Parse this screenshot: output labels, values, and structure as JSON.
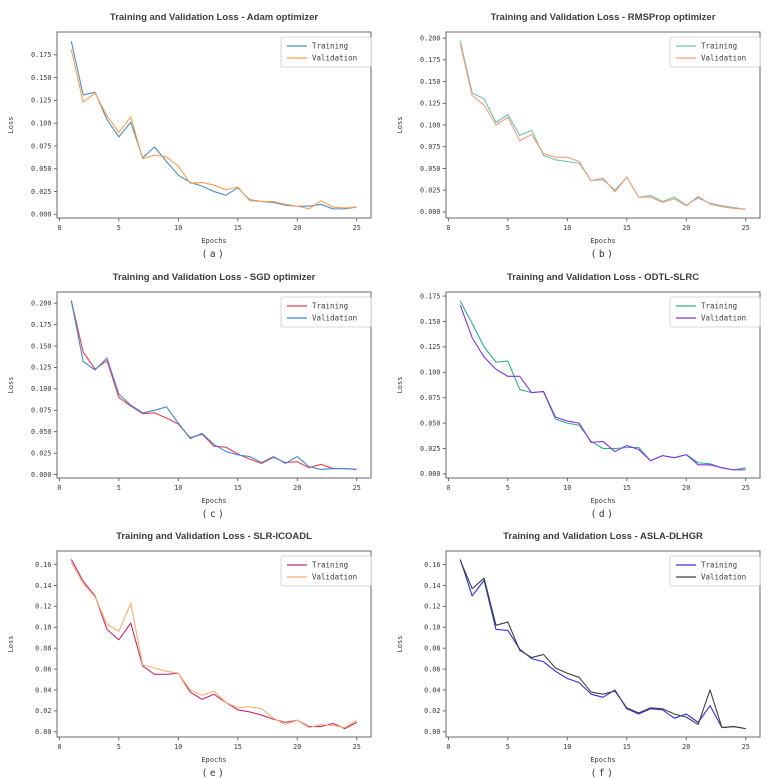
{
  "page": {
    "background": "#ffffff",
    "text_color": "#3d3d3d",
    "spine_color": "#595959"
  },
  "chart_data": {
    "type": "line",
    "x": [
      1,
      2,
      3,
      4,
      5,
      6,
      7,
      8,
      9,
      10,
      11,
      12,
      13,
      14,
      15,
      16,
      17,
      18,
      19,
      20,
      21,
      22,
      23,
      24,
      25
    ],
    "xlabel": "Epochs",
    "ylabel": "Loss",
    "xlim": [
      -0.2,
      26.2
    ],
    "xticks": [
      0,
      5,
      10,
      15,
      20,
      25
    ],
    "grid": false,
    "legend_position": "top-right",
    "legend_labels": [
      "Training",
      "Validation"
    ],
    "charts": [
      {
        "id": "a",
        "caption": "(a)",
        "title": "Training and Validation Loss - Adam optimizer",
        "ylim": [
          -0.004,
          0.2
        ],
        "yticks": [
          0.0,
          0.025,
          0.05,
          0.075,
          0.1,
          0.125,
          0.15,
          0.175
        ],
        "ytick_decimals": 3,
        "series": [
          {
            "name": "Training",
            "color": "#4e8fc9",
            "values": [
              0.19,
              0.131,
              0.134,
              0.104,
              0.085,
              0.101,
              0.062,
              0.074,
              0.058,
              0.043,
              0.035,
              0.031,
              0.025,
              0.021,
              0.029,
              0.016,
              0.014,
              0.013,
              0.01,
              0.009,
              0.009,
              0.011,
              0.006,
              0.006,
              0.008
            ]
          },
          {
            "name": "Validation",
            "color": "#ff9f4e",
            "values": [
              0.181,
              0.123,
              0.133,
              0.108,
              0.09,
              0.107,
              0.061,
              0.065,
              0.063,
              0.053,
              0.034,
              0.035,
              0.032,
              0.027,
              0.03,
              0.015,
              0.014,
              0.014,
              0.011,
              0.009,
              0.006,
              0.015,
              0.008,
              0.007,
              0.008
            ]
          }
        ]
      },
      {
        "id": "b",
        "caption": "(b)",
        "title": "Training and Validation Loss - RMSProp optimizer",
        "ylim": [
          -0.007,
          0.207
        ],
        "yticks": [
          0.0,
          0.025,
          0.05,
          0.075,
          0.1,
          0.125,
          0.15,
          0.175,
          0.2
        ],
        "ytick_decimals": 3,
        "series": [
          {
            "name": "Training",
            "color": "#6ec6ab",
            "values": [
              0.197,
              0.137,
              0.13,
              0.103,
              0.112,
              0.088,
              0.094,
              0.065,
              0.06,
              0.058,
              0.056,
              0.036,
              0.037,
              0.025,
              0.04,
              0.017,
              0.019,
              0.012,
              0.017,
              0.008,
              0.016,
              0.01,
              0.007,
              0.005,
              0.003
            ]
          },
          {
            "name": "Validation",
            "color": "#fb9c80",
            "values": [
              0.193,
              0.134,
              0.123,
              0.1,
              0.109,
              0.082,
              0.089,
              0.067,
              0.063,
              0.063,
              0.058,
              0.036,
              0.039,
              0.023,
              0.04,
              0.017,
              0.017,
              0.011,
              0.015,
              0.007,
              0.018,
              0.009,
              0.006,
              0.004,
              0.003
            ]
          }
        ]
      },
      {
        "id": "c",
        "caption": "(c)",
        "title": "Training and Validation Loss - SGD optimizer",
        "ylim": [
          -0.004,
          0.213
        ],
        "yticks": [
          0.0,
          0.025,
          0.05,
          0.075,
          0.1,
          0.125,
          0.15,
          0.175,
          0.2
        ],
        "ytick_decimals": 3,
        "series": [
          {
            "name": "Training",
            "color": "#e8414e",
            "values": [
              0.203,
              0.143,
              0.123,
              0.133,
              0.09,
              0.08,
              0.071,
              0.072,
              0.066,
              0.059,
              0.043,
              0.047,
              0.033,
              0.032,
              0.024,
              0.018,
              0.013,
              0.02,
              0.014,
              0.015,
              0.008,
              0.012,
              0.007,
              0.007,
              0.006
            ]
          },
          {
            "name": "Validation",
            "color": "#4484d8",
            "values": [
              0.203,
              0.132,
              0.122,
              0.136,
              0.094,
              0.081,
              0.072,
              0.075,
              0.079,
              0.06,
              0.042,
              0.048,
              0.035,
              0.027,
              0.023,
              0.021,
              0.014,
              0.021,
              0.013,
              0.021,
              0.009,
              0.006,
              0.007,
              0.007,
              0.006
            ]
          }
        ]
      },
      {
        "id": "d",
        "caption": "(d)",
        "title": "Training and Validation Loss - ODTL-SLRC",
        "ylim": [
          -0.004,
          0.179
        ],
        "yticks": [
          0.0,
          0.025,
          0.05,
          0.075,
          0.1,
          0.125,
          0.15,
          0.175
        ],
        "ytick_decimals": 3,
        "series": [
          {
            "name": "Training",
            "color": "#30ae85",
            "values": [
              0.17,
              0.148,
              0.125,
              0.11,
              0.111,
              0.083,
              0.08,
              0.081,
              0.054,
              0.05,
              0.048,
              0.032,
              0.025,
              0.025,
              0.026,
              0.026,
              0.013,
              0.018,
              0.016,
              0.019,
              0.011,
              0.01,
              0.006,
              0.004,
              0.006
            ]
          },
          {
            "name": "Validation",
            "color": "#8534e4",
            "values": [
              0.166,
              0.134,
              0.115,
              0.103,
              0.096,
              0.096,
              0.08,
              0.081,
              0.056,
              0.052,
              0.05,
              0.031,
              0.032,
              0.022,
              0.028,
              0.024,
              0.013,
              0.018,
              0.016,
              0.019,
              0.009,
              0.009,
              0.006,
              0.004,
              0.004
            ]
          }
        ]
      },
      {
        "id": "e",
        "caption": "(e)",
        "title": "Training and Validation Loss - SLR-ICOADL",
        "ylim": [
          -0.005,
          0.173
        ],
        "yticks": [
          0.0,
          0.02,
          0.04,
          0.06,
          0.08,
          0.1,
          0.12,
          0.14,
          0.16
        ],
        "ytick_decimals": 2,
        "series": [
          {
            "name": "Training",
            "color": "#c42a72",
            "values": [
              0.165,
              0.144,
              0.13,
              0.098,
              0.088,
              0.104,
              0.063,
              0.055,
              0.055,
              0.056,
              0.038,
              0.031,
              0.036,
              0.028,
              0.021,
              0.019,
              0.016,
              0.012,
              0.009,
              0.011,
              0.005,
              0.005,
              0.008,
              0.003,
              0.009
            ]
          },
          {
            "name": "Validation",
            "color": "#f7b171",
            "values": [
              0.162,
              0.142,
              0.129,
              0.103,
              0.096,
              0.123,
              0.064,
              0.061,
              0.058,
              0.056,
              0.04,
              0.035,
              0.039,
              0.028,
              0.023,
              0.024,
              0.022,
              0.013,
              0.007,
              0.011,
              0.004,
              0.007,
              0.006,
              0.004,
              0.011
            ]
          }
        ]
      },
      {
        "id": "f",
        "caption": "(f)",
        "title": "Training and Validation Loss - ASLA-DLHGR",
        "ylim": [
          -0.005,
          0.173
        ],
        "yticks": [
          0.0,
          0.02,
          0.04,
          0.06,
          0.08,
          0.1,
          0.12,
          0.14,
          0.16
        ],
        "ytick_decimals": 2,
        "series": [
          {
            "name": "Training",
            "color": "#3030e0",
            "values": [
              0.165,
              0.13,
              0.145,
              0.098,
              0.097,
              0.079,
              0.07,
              0.067,
              0.058,
              0.051,
              0.047,
              0.036,
              0.033,
              0.04,
              0.022,
              0.017,
              0.022,
              0.021,
              0.013,
              0.017,
              0.009,
              0.025,
              0.004,
              0.005,
              0.003
            ]
          },
          {
            "name": "Validation",
            "color": "#404040",
            "values": [
              0.164,
              0.137,
              0.147,
              0.102,
              0.105,
              0.078,
              0.071,
              0.074,
              0.061,
              0.056,
              0.052,
              0.038,
              0.036,
              0.039,
              0.023,
              0.018,
              0.023,
              0.022,
              0.017,
              0.014,
              0.007,
              0.04,
              0.004,
              0.005,
              0.003
            ]
          }
        ]
      }
    ]
  }
}
